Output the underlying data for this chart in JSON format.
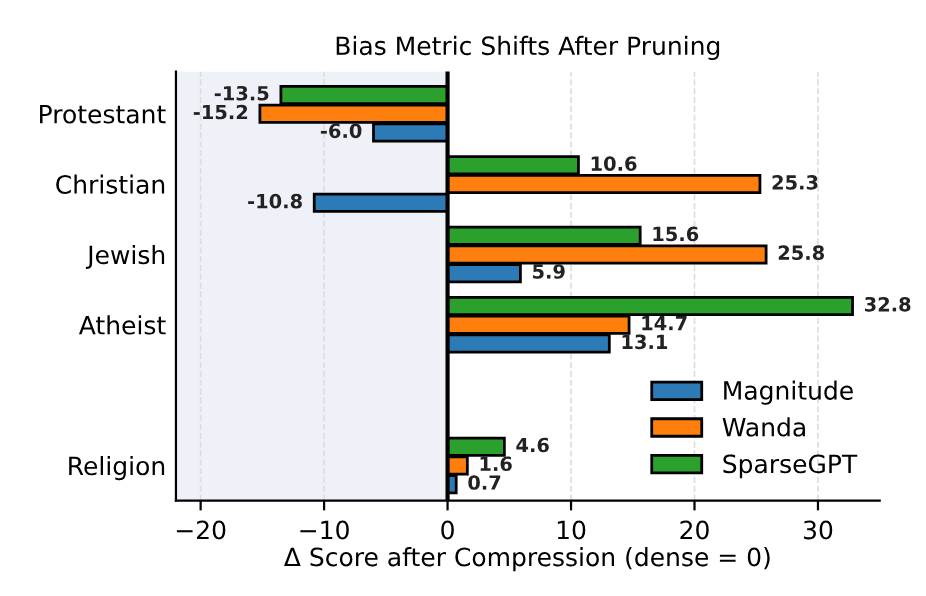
{
  "chart_data": {
    "type": "bar",
    "orientation": "horizontal",
    "title": "Bias Metric Shifts After Pruning",
    "xlabel": "Δ Score after Compression (dense = 0)",
    "categories": [
      "Protestant",
      "Christian",
      "Jewish",
      "Atheist",
      null,
      "Religion"
    ],
    "series": [
      {
        "name": "Magnitude",
        "color": "#2c7bb6",
        "values": [
          -6.0,
          -10.8,
          5.9,
          13.1,
          null,
          0.7
        ],
        "value_labels": [
          "-6.0",
          "-10.8",
          "5.9",
          "13.1",
          null,
          "0.7"
        ]
      },
      {
        "name": "Wanda",
        "color": "#ff7f0e",
        "values": [
          -15.2,
          25.3,
          25.8,
          14.7,
          null,
          1.6
        ],
        "value_labels": [
          "-15.2",
          "25.3",
          "25.8",
          "14.7",
          null,
          "1.6"
        ]
      },
      {
        "name": "SparseGPT",
        "color": "#2ca02c",
        "values": [
          -13.5,
          10.6,
          15.6,
          32.8,
          null,
          4.6
        ],
        "value_labels": [
          "-13.5",
          "10.6",
          "15.6",
          "32.8",
          null,
          "4.6"
        ]
      }
    ],
    "xlim": [
      -22,
      35
    ],
    "xticks": [
      {
        "value": -20,
        "label": "−20"
      },
      {
        "value": -10,
        "label": "−10"
      },
      0,
      10,
      20,
      30
    ],
    "bands": [
      {
        "axis": "x",
        "from": -22,
        "to": 0,
        "color": "#eef2f8"
      }
    ],
    "ref_lines": [
      {
        "axis": "x",
        "value": 0,
        "color": "#000000"
      }
    ],
    "data_labels": true,
    "grid": "x",
    "legend": "bottom right"
  }
}
